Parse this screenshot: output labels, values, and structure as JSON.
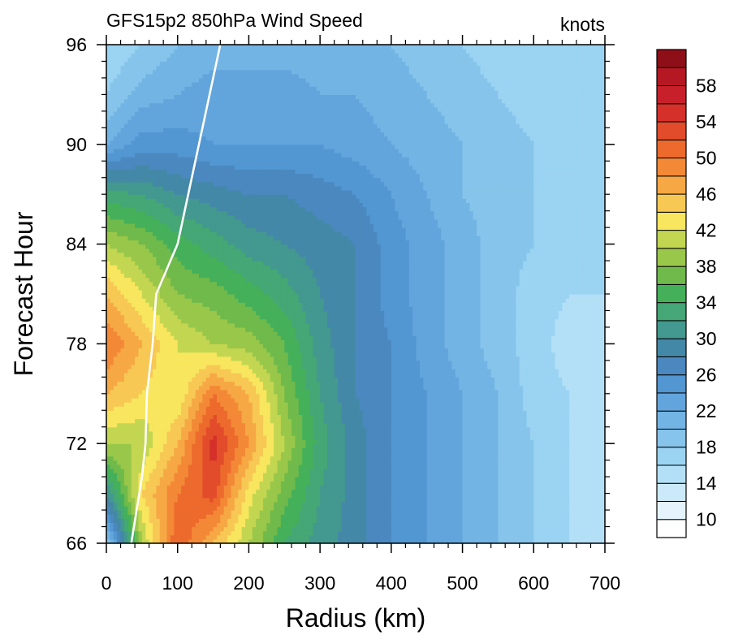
{
  "chart_data": {
    "type": "heatmap",
    "title": "GFS15p2 850hPa Wind Speed",
    "units": "knots",
    "xlabel": "Radius (km)",
    "ylabel": "Forecast Hour",
    "xlim": [
      0,
      700
    ],
    "ylim": [
      66,
      96
    ],
    "x_ticks": [
      0,
      100,
      200,
      300,
      400,
      500,
      600,
      700
    ],
    "y_ticks": [
      66,
      72,
      78,
      84,
      90,
      96
    ],
    "x_tick_labels": [
      "0",
      "100",
      "200",
      "300",
      "400",
      "500",
      "600",
      "700"
    ],
    "y_tick_labels": [
      "66",
      "72",
      "78",
      "84",
      "90",
      "96"
    ],
    "x_grid": [
      0,
      50,
      100,
      150,
      200,
      250,
      300,
      350,
      400,
      450,
      500,
      550,
      600,
      650,
      700
    ],
    "y_grid": [
      66,
      69,
      72,
      75,
      78,
      81,
      84,
      87,
      90,
      93,
      96
    ],
    "values": [
      [
        18,
        40,
        52,
        46,
        40,
        34,
        31,
        29,
        26,
        24,
        22,
        20,
        18,
        16,
        15
      ],
      [
        30,
        44,
        50,
        53,
        43,
        37,
        32,
        29,
        26,
        24,
        22,
        20,
        18,
        16,
        15
      ],
      [
        40,
        40,
        46,
        55,
        48,
        40,
        33,
        29,
        26,
        24,
        22,
        20,
        18,
        16,
        15
      ],
      [
        46,
        44,
        42,
        50,
        46,
        38,
        32,
        28,
        26,
        24,
        22,
        20,
        17,
        16,
        15
      ],
      [
        50,
        46,
        42,
        40,
        39,
        36,
        31,
        28,
        26,
        23,
        21,
        19,
        17,
        15,
        15
      ],
      [
        46,
        42,
        38,
        37,
        35,
        33,
        30,
        28,
        25,
        23,
        21,
        19,
        17,
        16,
        16
      ],
      [
        40,
        38,
        35,
        33,
        31,
        30,
        29,
        28,
        25,
        23,
        21,
        19,
        18,
        17,
        16
      ],
      [
        33,
        32,
        30,
        29,
        28,
        28,
        27,
        26,
        24,
        22,
        20,
        19,
        18,
        17,
        17
      ],
      [
        22,
        25,
        25,
        24,
        24,
        24,
        24,
        23,
        22,
        21,
        20,
        19,
        18,
        17,
        17
      ],
      [
        18,
        21,
        22,
        23,
        23,
        23,
        22,
        22,
        21,
        20,
        19,
        18,
        17,
        17,
        16
      ],
      [
        16,
        18,
        20,
        21,
        21,
        21,
        21,
        20,
        20,
        19,
        18,
        17,
        17,
        16,
        16
      ]
    ],
    "rmw_line": {
      "x": [
        35,
        50,
        55,
        57,
        65,
        70,
        100,
        130,
        160
      ],
      "y": [
        66,
        70,
        72,
        75,
        78,
        81,
        84,
        90,
        96
      ]
    },
    "colorbar": {
      "levels": [
        10,
        12,
        14,
        16,
        18,
        20,
        22,
        24,
        26,
        28,
        30,
        32,
        34,
        36,
        38,
        40,
        42,
        44,
        46,
        48,
        50,
        52,
        54,
        56,
        58,
        60
      ],
      "labels": [
        "10",
        "14",
        "18",
        "22",
        "26",
        "30",
        "34",
        "38",
        "42",
        "46",
        "50",
        "54",
        "58"
      ],
      "label_values": [
        10,
        14,
        18,
        22,
        26,
        30,
        34,
        38,
        42,
        46,
        50,
        54,
        58
      ],
      "colors": [
        "#ffffff",
        "#e4f3fc",
        "#cce9f9",
        "#b4e0f7",
        "#9bd3f2",
        "#86c4eb",
        "#72b4e4",
        "#62a5dc",
        "#5296d2",
        "#4a88bf",
        "#4488a8",
        "#43988f",
        "#44a775",
        "#45b05a",
        "#6fba4b",
        "#99c74a",
        "#c3d651",
        "#f8e65e",
        "#f7c854",
        "#f6a844",
        "#f38936",
        "#ed6a2d",
        "#e24c2b",
        "#d6302a",
        "#c8202a",
        "#b61823",
        "#8e0f18"
      ]
    }
  }
}
